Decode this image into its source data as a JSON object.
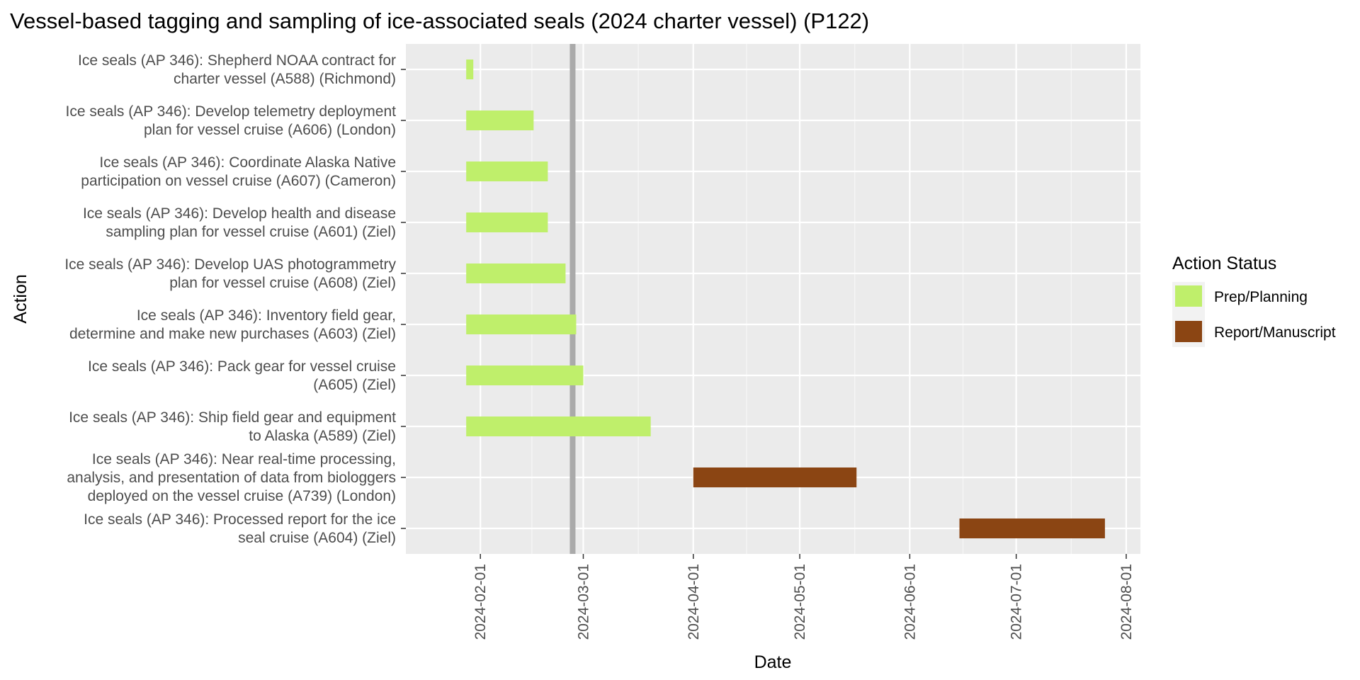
{
  "chart_data": {
    "type": "gantt",
    "title": "Vessel-based tagging and sampling of ice-associated seals (2024 charter vessel) (P122)",
    "xlabel": "Date",
    "ylabel": "Action",
    "x_ticks": [
      "2024-02-01",
      "2024-03-01",
      "2024-04-01",
      "2024-05-01",
      "2024-06-01",
      "2024-07-01",
      "2024-08-01"
    ],
    "xlim": [
      "2024-01-11",
      "2024-08-05"
    ],
    "today_line": "2024-02-27",
    "grid": true,
    "legend": {
      "title": "Action Status",
      "position": "right",
      "entries": [
        {
          "label": "Prep/Planning",
          "color": "#bfef6b"
        },
        {
          "label": "Report/Manuscript",
          "color": "#8b4513"
        }
      ]
    },
    "tasks": [
      {
        "label_lines": [
          "Ice seals (AP 346): Shepherd NOAA contract for",
          "charter vessel (A588) (Richmond)"
        ],
        "start": "2024-01-28",
        "end": "2024-01-30",
        "status": "Prep/Planning"
      },
      {
        "label_lines": [
          "Ice seals (AP 346): Develop telemetry deployment",
          "plan for vessel cruise (A606) (London)"
        ],
        "start": "2024-01-28",
        "end": "2024-02-16",
        "status": "Prep/Planning"
      },
      {
        "label_lines": [
          "Ice seals (AP 346): Coordinate Alaska Native",
          "participation on vessel cruise (A607) (Cameron)"
        ],
        "start": "2024-01-28",
        "end": "2024-02-20",
        "status": "Prep/Planning"
      },
      {
        "label_lines": [
          "Ice seals (AP 346): Develop health and disease",
          "sampling plan for vessel cruise (A601) (Ziel)"
        ],
        "start": "2024-01-28",
        "end": "2024-02-20",
        "status": "Prep/Planning"
      },
      {
        "label_lines": [
          "Ice seals (AP 346): Develop UAS photogrammetry",
          "plan for vessel cruise (A608) (Ziel)"
        ],
        "start": "2024-01-28",
        "end": "2024-02-25",
        "status": "Prep/Planning"
      },
      {
        "label_lines": [
          "Ice seals (AP 346): Inventory field gear,",
          "determine and make new purchases (A603) (Ziel)"
        ],
        "start": "2024-01-28",
        "end": "2024-02-28",
        "status": "Prep/Planning"
      },
      {
        "label_lines": [
          "Ice seals (AP 346): Pack gear for vessel cruise",
          "(A605) (Ziel)"
        ],
        "start": "2024-01-28",
        "end": "2024-03-01",
        "status": "Prep/Planning"
      },
      {
        "label_lines": [
          "Ice seals (AP 346): Ship field gear and equipment",
          "to Alaska (A589) (Ziel)"
        ],
        "start": "2024-01-28",
        "end": "2024-03-20",
        "status": "Prep/Planning"
      },
      {
        "label_lines": [
          "Ice seals (AP 346): Near real-time processing,",
          "analysis, and presentation of data from biologgers",
          "deployed on the vessel cruise (A739) (London)"
        ],
        "start": "2024-04-01",
        "end": "2024-05-17",
        "status": "Report/Manuscript"
      },
      {
        "label_lines": [
          "Ice seals (AP 346): Processed report for the ice",
          "seal cruise (A604) (Ziel)"
        ],
        "start": "2024-06-15",
        "end": "2024-07-26",
        "status": "Report/Manuscript"
      }
    ]
  }
}
